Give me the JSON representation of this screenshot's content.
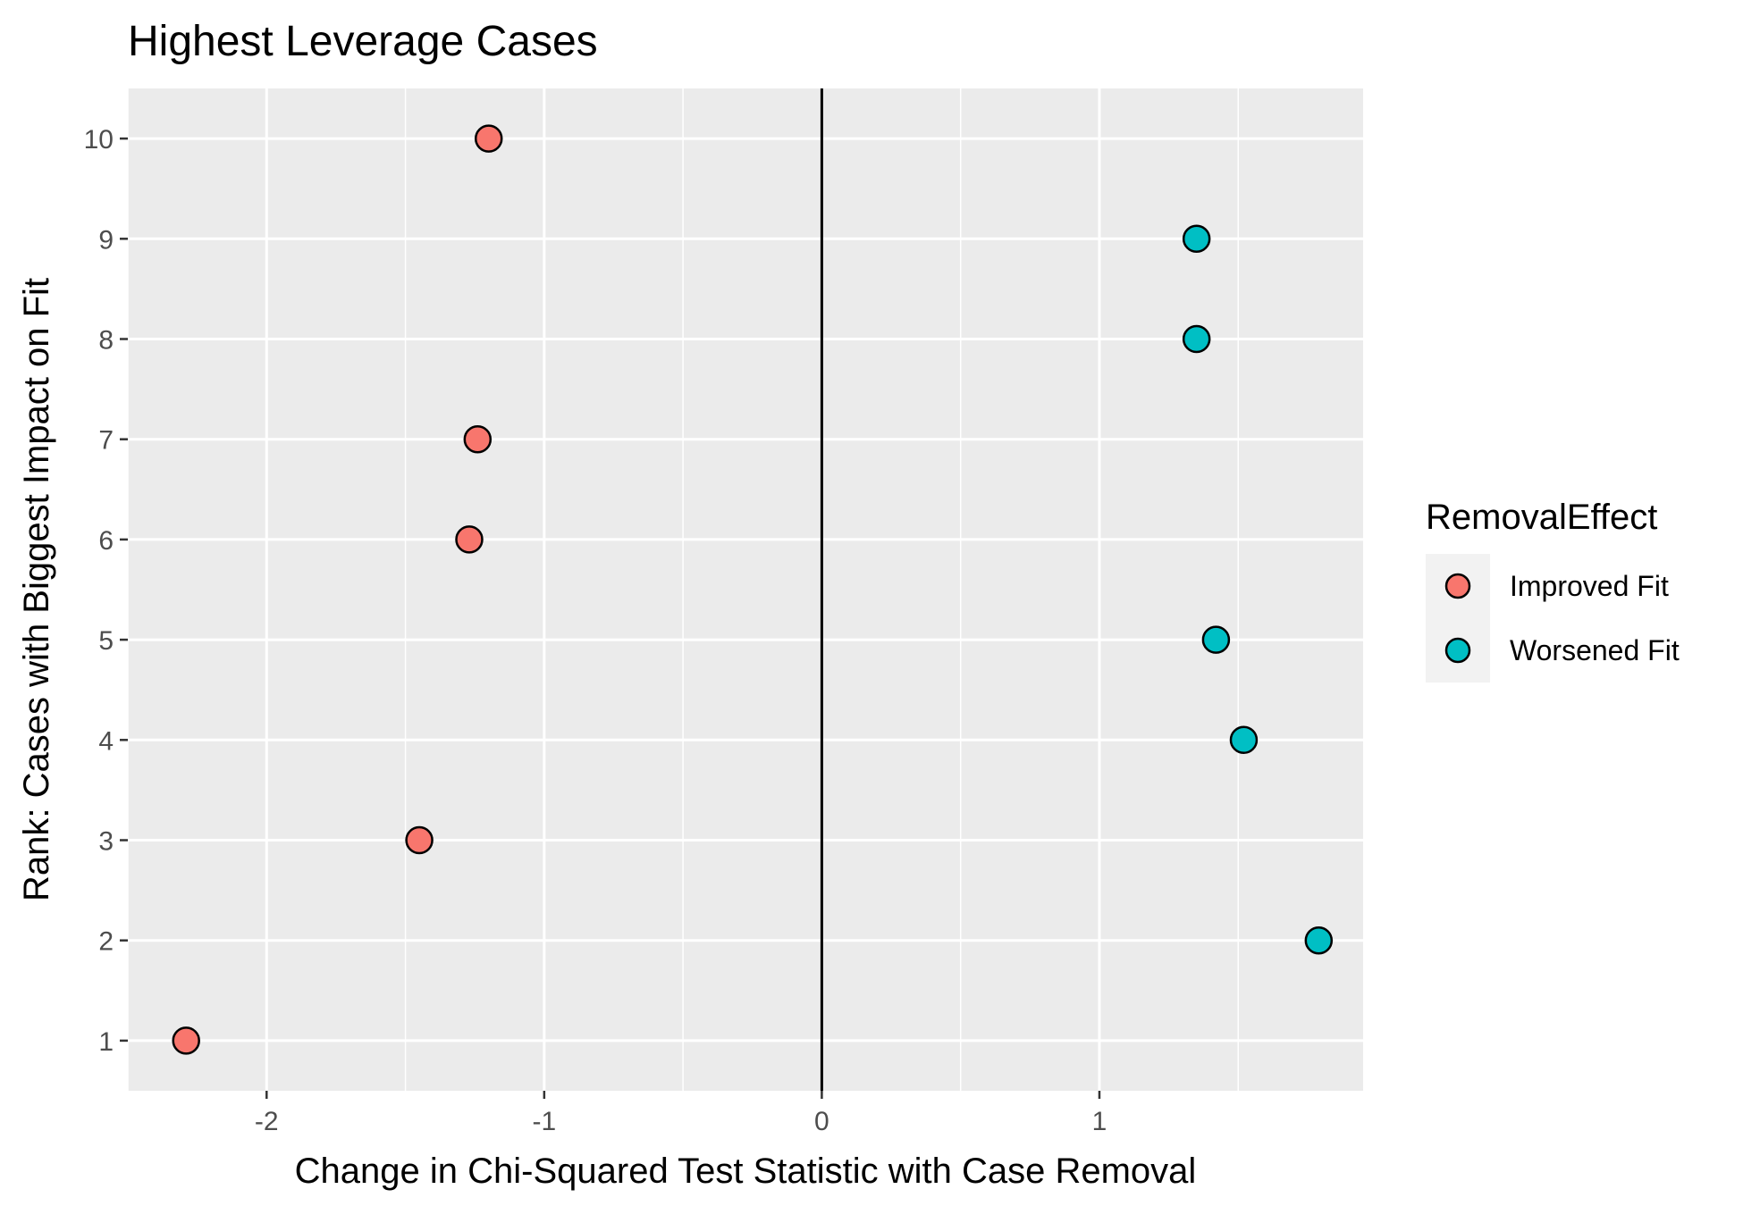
{
  "chart_data": {
    "type": "scatter",
    "title": "Highest Leverage Cases",
    "xlabel": "Change in Chi-Squared Test Statistic with Case Removal",
    "ylabel": "Rank: Cases with Biggest Impact on Fit",
    "xlim": [
      -2.5,
      1.95
    ],
    "ylim": [
      0.5,
      10.5
    ],
    "x_ticks": [
      -2,
      -1,
      0,
      1
    ],
    "x_tick_labels": [
      "-2",
      "-1",
      "0",
      "1"
    ],
    "y_ticks": [
      1,
      2,
      3,
      4,
      5,
      6,
      7,
      8,
      9,
      10
    ],
    "y_tick_labels": [
      "1",
      "2",
      "3",
      "4",
      "5",
      "6",
      "7",
      "8",
      "9",
      "10"
    ],
    "reference_line_x": 0,
    "legend_title": "RemovalEffect",
    "legend_position": "right",
    "series": [
      {
        "name": "Improved Fit",
        "color": "#F8766D",
        "points": [
          {
            "x": -2.29,
            "y": 1
          },
          {
            "x": -1.45,
            "y": 3
          },
          {
            "x": -1.27,
            "y": 6
          },
          {
            "x": -1.24,
            "y": 7
          },
          {
            "x": -1.2,
            "y": 10
          }
        ]
      },
      {
        "name": "Worsened Fit",
        "color": "#00BFC4",
        "points": [
          {
            "x": 1.79,
            "y": 2
          },
          {
            "x": 1.52,
            "y": 4
          },
          {
            "x": 1.42,
            "y": 5
          },
          {
            "x": 1.35,
            "y": 8
          },
          {
            "x": 1.35,
            "y": 9
          }
        ]
      }
    ]
  }
}
